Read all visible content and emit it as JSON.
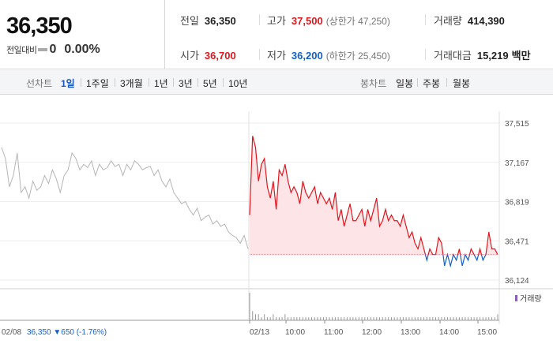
{
  "price": {
    "current": "36,350",
    "change_label": "전일대비",
    "change_value": "0",
    "change_rate": "0.00%"
  },
  "stats": {
    "prev_close": {
      "label": "전일",
      "value": "36,350"
    },
    "high": {
      "label": "고가",
      "value": "37,500",
      "sub": "(상한가 47,250)"
    },
    "volume": {
      "label": "거래량",
      "value": "414,390"
    },
    "open": {
      "label": "시가",
      "value": "36,700"
    },
    "low": {
      "label": "저가",
      "value": "36,200",
      "sub": "(하한가 25,450)"
    },
    "trade_amount": {
      "label": "거래대금",
      "value": "15,219",
      "unit": "백만"
    }
  },
  "line_chart_bar": {
    "title": "선차트",
    "tabs": [
      "1일",
      "1주일",
      "3개월",
      "1년",
      "3년",
      "5년",
      "10년"
    ],
    "active": "1일"
  },
  "candle_chart_bar": {
    "title": "봉차트",
    "tabs": [
      "일봉",
      "주봉",
      "월봉"
    ]
  },
  "chart_data": {
    "type": "line",
    "y_ticks": [
      "37,515",
      "37,167",
      "36,819",
      "36,471",
      "36,124"
    ],
    "ylim": [
      36124,
      37515
    ],
    "baseline": 36350,
    "x_ticks": [
      "02/13",
      "10:00",
      "11:00",
      "12:00",
      "13:00",
      "14:00",
      "15:00"
    ],
    "legend_label": "거래량",
    "prev_day_label": "02/08",
    "prev_day_info": "36,350 ▼650 (-1.76%)",
    "prev_day_close": 36350,
    "prev_day_series": [
      37300,
      37200,
      36950,
      37050,
      37250,
      36900,
      36950,
      36850,
      37000,
      36920,
      36950,
      37050,
      36980,
      37100,
      37020,
      36900,
      37050,
      37100,
      37250,
      37200,
      37100,
      37150,
      37120,
      37180,
      37050,
      37150,
      37100,
      37120,
      37180,
      37130,
      37150,
      37050,
      37150,
      37100,
      37180,
      37150,
      37100,
      37120,
      37130,
      37050,
      37100,
      37000,
      36950,
      37020,
      36900,
      36850,
      36800,
      36820,
      36750,
      36700,
      36760,
      36650,
      36680,
      36700,
      36620,
      36650,
      36600,
      36620,
      36550,
      36520,
      36500,
      36450,
      36520,
      36400
    ],
    "today_series": [
      36700,
      37400,
      37300,
      37000,
      37150,
      37200,
      36950,
      36850,
      37000,
      36750,
      37100,
      37050,
      37150,
      37000,
      36900,
      36950,
      36900,
      36800,
      37000,
      36900,
      36850,
      36900,
      36950,
      36800,
      36900,
      36850,
      36800,
      36850,
      36750,
      36900,
      36650,
      36750,
      36600,
      36700,
      36800,
      36650,
      36650,
      36700,
      36750,
      36600,
      36750,
      36650,
      36750,
      36850,
      36600,
      36650,
      36750,
      36650,
      36700,
      36650,
      36650,
      36600,
      36700,
      36600,
      36500,
      36550,
      36450,
      36400,
      36500,
      36400,
      36300,
      36400,
      36350,
      36350,
      36500,
      36450,
      36250,
      36350,
      36250,
      36350,
      36300,
      36400,
      36250,
      36350,
      36300,
      36400,
      36350,
      36300,
      36400,
      36300,
      36350,
      36550,
      36400,
      36400,
      36350
    ],
    "today_volume": [
      9,
      3,
      2,
      2,
      1,
      2,
      1,
      1,
      2,
      1,
      1,
      1,
      2,
      1,
      1,
      1,
      1,
      1,
      1,
      1,
      1,
      1,
      1,
      1,
      1,
      1,
      1,
      1,
      1,
      1,
      1,
      1,
      1,
      1,
      1,
      1,
      1,
      1,
      1,
      1,
      1,
      1,
      1,
      1,
      1,
      1,
      1,
      1,
      1,
      1,
      1,
      1,
      1,
      1,
      1,
      1,
      1,
      1,
      1,
      1,
      1,
      1,
      1,
      1,
      1,
      1,
      1,
      1,
      1,
      1,
      1,
      1,
      1,
      1,
      1,
      1,
      1,
      1,
      1,
      1,
      1,
      1,
      1,
      1,
      2
    ],
    "colors": {
      "up": "#e0161e",
      "down": "#1560c4",
      "prev": "#b5b5b5",
      "fill": "#fde4e6"
    }
  }
}
